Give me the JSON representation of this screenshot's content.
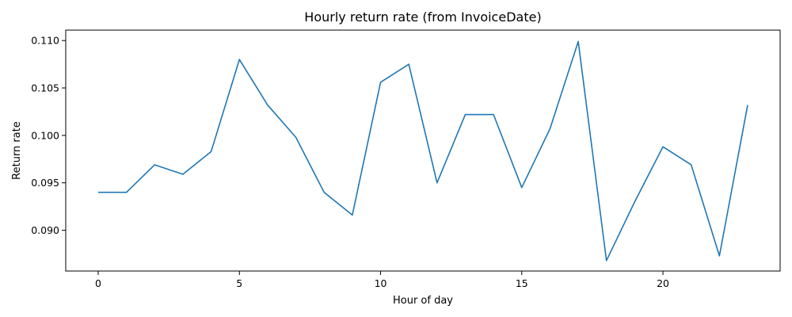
{
  "chart_data": {
    "type": "line",
    "title": "Hourly return rate (from InvoiceDate)",
    "xlabel": "Hour of day",
    "ylabel": "Return rate",
    "x": [
      0,
      1,
      2,
      3,
      4,
      5,
      6,
      7,
      8,
      9,
      10,
      11,
      12,
      13,
      14,
      15,
      16,
      17,
      18,
      19,
      20,
      21,
      22,
      23
    ],
    "series": [
      {
        "values": [
          0.094,
          0.094,
          0.0969,
          0.0959,
          0.0983,
          0.108,
          0.1032,
          0.0998,
          0.094,
          0.0916,
          0.1056,
          0.1075,
          0.095,
          0.1022,
          0.1022,
          0.0945,
          0.1007,
          0.1099,
          0.0868,
          0.093,
          0.0988,
          0.0969,
          0.0873,
          0.1032
        ],
        "color": "#1f77b4"
      }
    ],
    "xlim": [
      -1.15,
      24.15
    ],
    "ylim": [
      0.0857,
      0.1111
    ],
    "xticks": [
      0,
      5,
      10,
      15,
      20
    ],
    "xtick_labels": [
      "0",
      "5",
      "10",
      "15",
      "20"
    ],
    "yticks": [
      0.09,
      0.095,
      0.1,
      0.105,
      0.11
    ],
    "ytick_labels": [
      "0.090",
      "0.095",
      "0.100",
      "0.105",
      "0.110"
    ],
    "grid": false,
    "legend": "none"
  }
}
